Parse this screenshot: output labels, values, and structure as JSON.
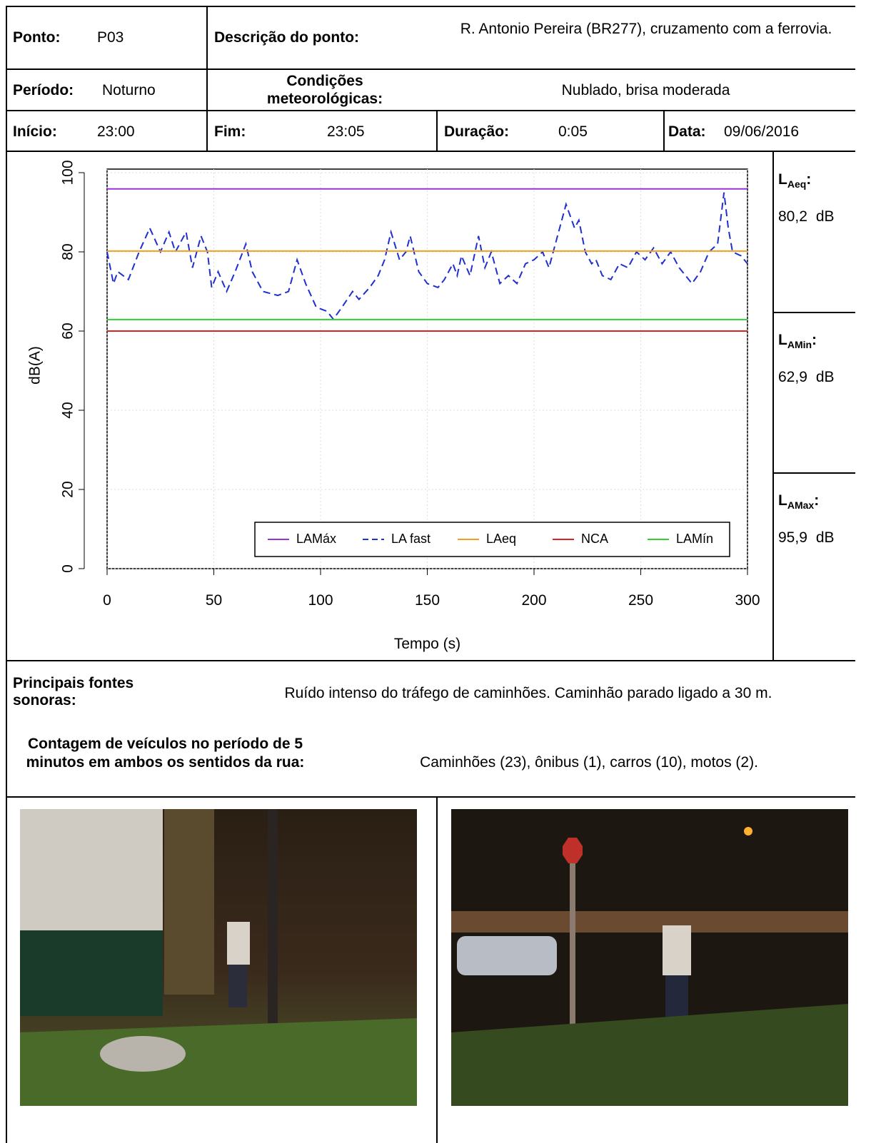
{
  "header": {
    "ponto_label": "Ponto:",
    "ponto": "P03",
    "descricao_label": "Descrição do ponto:",
    "descricao": "R. Antonio Pereira (BR277), cruzamento com a ferrovia.",
    "periodo_label": "Período:",
    "periodo": "Noturno",
    "condicoes_label": "Condições meteorológicas:",
    "condicoes": "Nublado, brisa moderada",
    "inicio_label": "Início:",
    "inicio": "23:00",
    "fim_label": "Fim:",
    "fim": "23:05",
    "duracao_label": "Duração:",
    "duracao": "0:05",
    "data_label": "Data:",
    "data": "09/06/2016"
  },
  "chart_data": {
    "type": "line",
    "xlabel": "Tempo (s)",
    "ylabel": "dB(A)",
    "xlim": [
      0,
      300
    ],
    "ylim": [
      0,
      100
    ],
    "xticks": [
      0,
      50,
      100,
      150,
      200,
      250,
      300
    ],
    "yticks": [
      0,
      20,
      40,
      60,
      80,
      100
    ],
    "grid": true,
    "legend": "bottom-right",
    "series": [
      {
        "name": "LAMáx",
        "color": "#9b30d9",
        "x": [
          0,
          300
        ],
        "values": [
          95.9,
          95.9
        ]
      },
      {
        "name": "LA fast",
        "color": "#1f2fd0",
        "linestyle": "dashed",
        "x": [
          0,
          3,
          5,
          10,
          15,
          20,
          25,
          29,
          32,
          37,
          40,
          44,
          47,
          49,
          52,
          56,
          60,
          65,
          68,
          73,
          80,
          85,
          89,
          93,
          98,
          103,
          106,
          110,
          115,
          118,
          123,
          127,
          130,
          133,
          137,
          140,
          142,
          146,
          150,
          155,
          158,
          162,
          164,
          166,
          170,
          174,
          177,
          180,
          184,
          188,
          192,
          196,
          200,
          204,
          207,
          211,
          215,
          219,
          221,
          224,
          227,
          229,
          232,
          236,
          240,
          244,
          248,
          252,
          256,
          260,
          264,
          268,
          274,
          278,
          282,
          286,
          289,
          291,
          293,
          297,
          300
        ],
        "values": [
          80,
          72,
          75,
          73,
          80,
          86,
          80,
          85,
          80,
          85,
          76,
          84,
          80,
          71,
          75,
          70,
          75,
          82,
          75,
          70,
          69,
          70,
          78,
          72,
          66,
          65,
          63,
          66,
          70,
          68,
          71,
          74,
          78,
          85,
          78,
          80,
          84,
          75,
          72,
          71,
          73,
          77,
          74,
          79,
          74,
          84,
          76,
          80,
          72,
          74,
          72,
          77,
          78,
          80,
          76,
          84,
          92,
          86,
          88,
          80,
          77,
          78,
          74,
          73,
          77,
          76,
          80,
          78,
          81,
          77,
          80,
          76,
          72,
          75,
          80,
          82,
          95,
          86,
          80,
          79,
          77
        ]
      },
      {
        "name": "LAeq",
        "color": "#f0a020",
        "x": [
          0,
          300
        ],
        "values": [
          80.2,
          80.2
        ]
      },
      {
        "name": "NCA",
        "color": "#e02020",
        "x": [
          0,
          300
        ],
        "values": [
          60,
          60
        ]
      },
      {
        "name": "LAMín",
        "color": "#30d030",
        "x": [
          0,
          300
        ],
        "values": [
          62.9,
          62.9
        ]
      }
    ]
  },
  "summary": [
    {
      "symbol": "L",
      "sub": "Aeq",
      "sep": ":",
      "value": "80,2",
      "unit": "dB"
    },
    {
      "symbol": "L",
      "sub": "AMin",
      "sep": ":",
      "value": "62,9",
      "unit": "dB"
    },
    {
      "symbol": "L",
      "sub": "AMax",
      "sep": ":",
      "value": "95,9",
      "unit": "dB"
    }
  ],
  "sources": {
    "label": "Principais fontes sonoras:",
    "text": "Ruído intenso do tráfego de caminhões. Caminhão parado ligado a 30 m."
  },
  "count": {
    "label": "Contagem de veículos no período de 5 minutos em ambos os sentidos da rua:",
    "text": "Caminhões (23), ônibus (1), carros (10), motos (2)."
  }
}
